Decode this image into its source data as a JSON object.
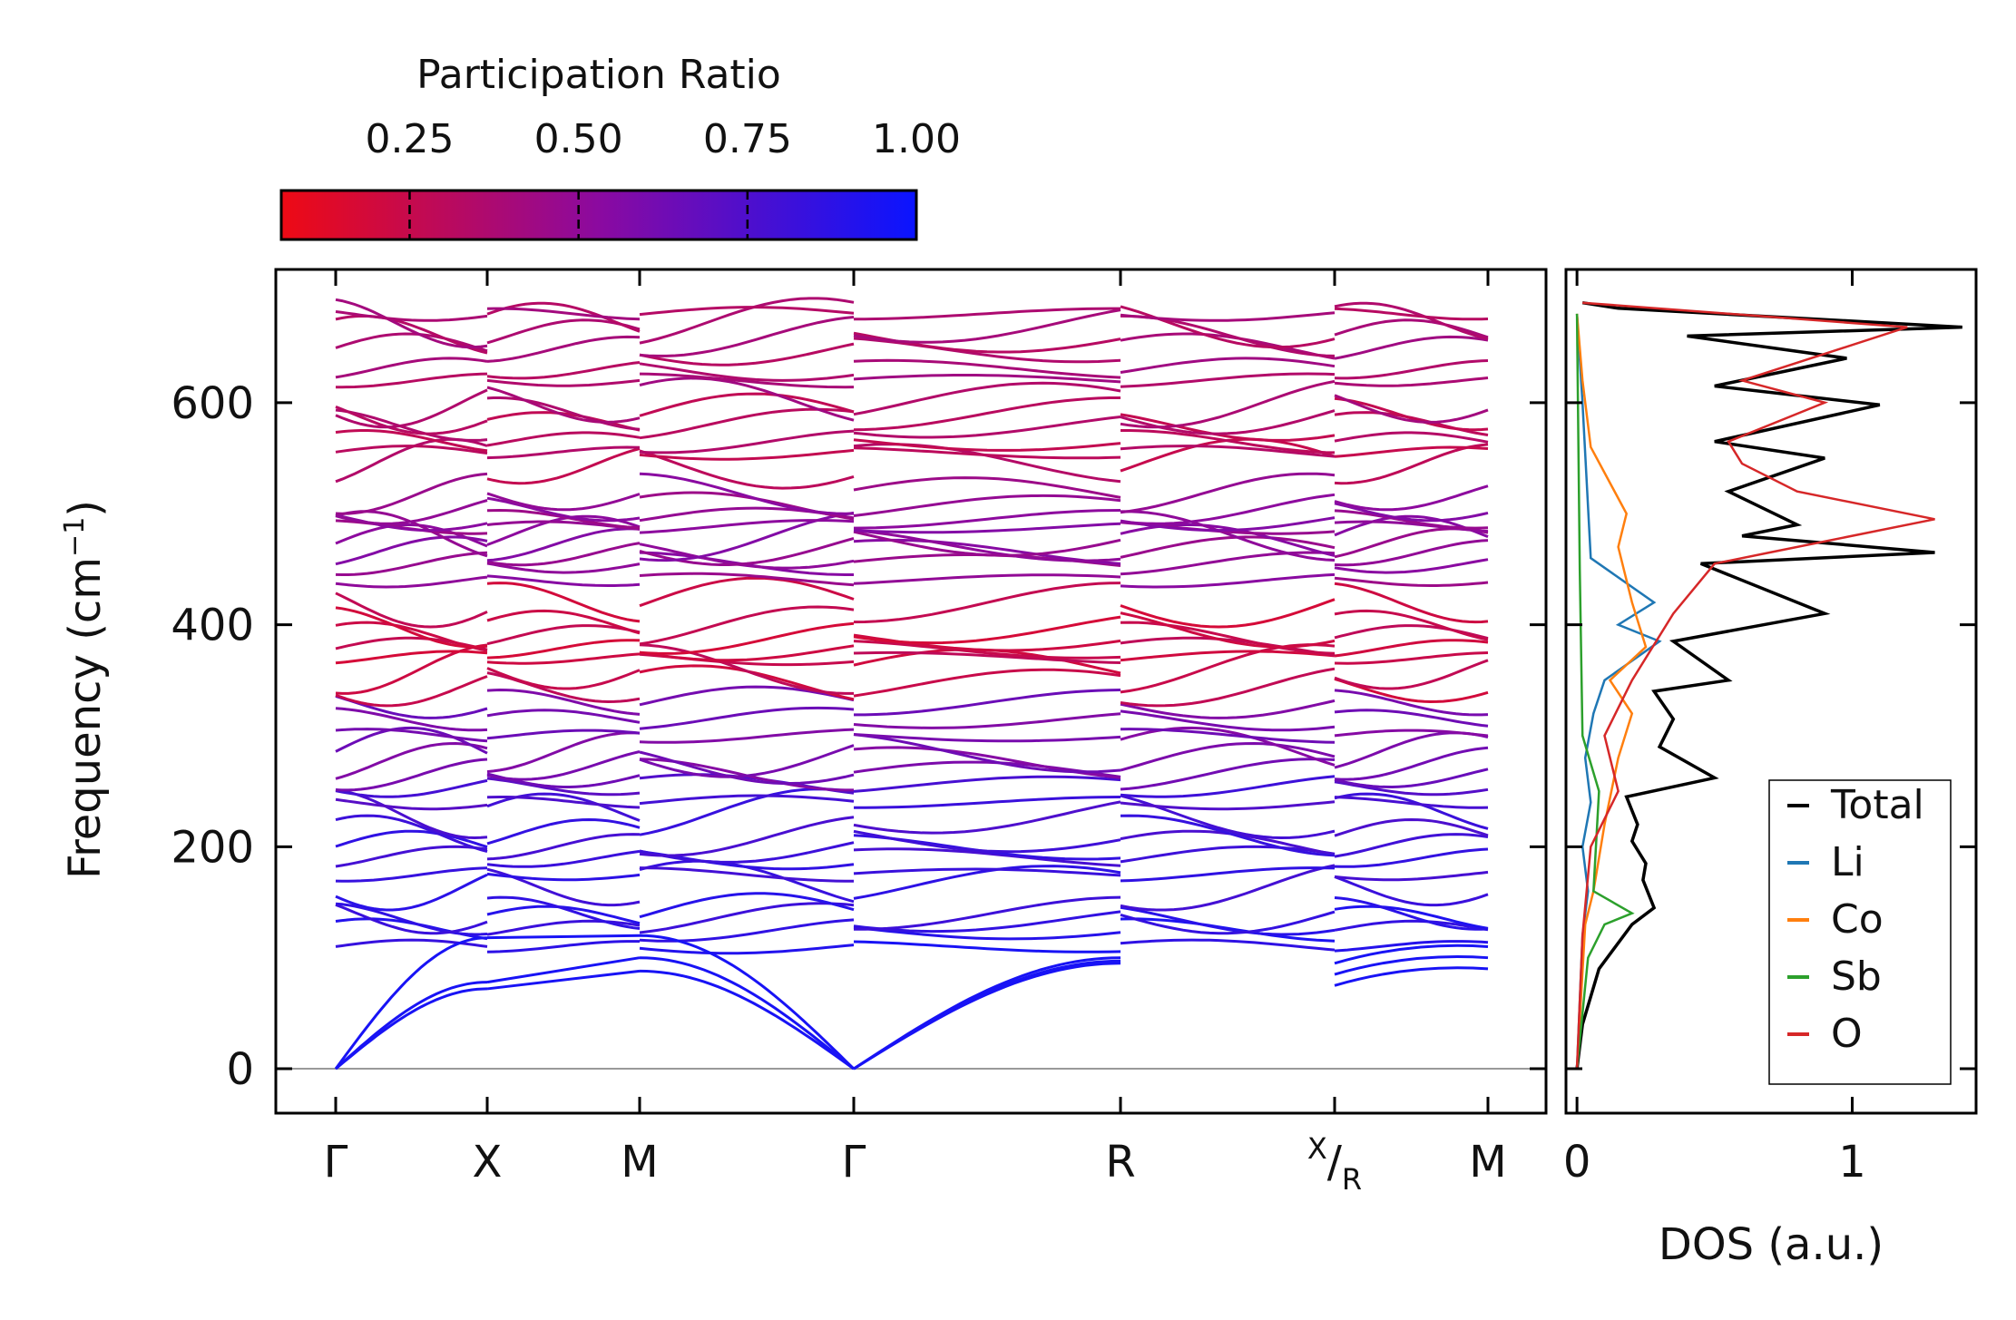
{
  "chart_data": [
    {
      "type": "line",
      "title": "",
      "xlabel": "",
      "ylabel": "Frequency (cm⁻¹)",
      "ylim": [
        -40,
        720
      ],
      "xticks": [
        "Γ",
        "X",
        "M",
        "Γ",
        "R",
        "X/R",
        "M"
      ],
      "xtick_positions": [
        0,
        1,
        2,
        3.41,
        5.18,
        6.6,
        7.6
      ],
      "yticks": [
        "0",
        "200",
        "400",
        "600"
      ],
      "ytick_values": [
        0,
        200,
        400,
        600
      ],
      "zero_line": 0,
      "colorbar": {
        "title": "Participation Ratio",
        "ticks": [
          "0.25",
          "0.50",
          "0.75",
          "1.00"
        ],
        "tick_values": [
          0.25,
          0.5,
          0.75,
          1.0
        ],
        "range": [
          0.06,
          1.0
        ],
        "low_color": "#ee0a14",
        "high_color": "#0a14ff"
      },
      "optical_band_frequencies": [
        110,
        125,
        135,
        140,
        165,
        175,
        190,
        200,
        210,
        230,
        240,
        255,
        265,
        275,
        285,
        300,
        315,
        330,
        345,
        360,
        370,
        378,
        388,
        398,
        420,
        440,
        455,
        465,
        472,
        480,
        488,
        495,
        505,
        518,
        545,
        555,
        565,
        580,
        590,
        600,
        620,
        630,
        648,
        660,
        672,
        680
      ],
      "acoustic_band_endpoints": {
        "X": [
          72,
          78,
          118
        ],
        "M": [
          88,
          100,
          120
        ],
        "R": [
          95,
          97,
          100
        ],
        "M_end": [
          90,
          100,
          110
        ]
      }
    },
    {
      "type": "line",
      "title": "",
      "xlabel": "DOS (a.u.)",
      "ylabel": "",
      "xlim": [
        -0.04,
        1.45
      ],
      "ylim": [
        -40,
        720
      ],
      "xticks": [
        "0",
        "1"
      ],
      "xtick_values": [
        0,
        1
      ],
      "legend": {
        "position": "bottom-right",
        "entries": [
          "Total",
          "Li",
          "Co",
          "Sb",
          "O"
        ]
      },
      "series": [
        {
          "name": "Total",
          "color": "#000000",
          "x": [
            0.0,
            0.02,
            0.08,
            0.2,
            0.28,
            0.24,
            0.25,
            0.2,
            0.22,
            0.18,
            0.5,
            0.3,
            0.35,
            0.28,
            0.55,
            0.35,
            0.9,
            0.45,
            1.3,
            0.6,
            0.8,
            0.55,
            0.9,
            0.5,
            1.1,
            0.5,
            0.98,
            0.4,
            1.4,
            0.15,
            0.02
          ],
          "y": [
            0,
            40,
            90,
            130,
            145,
            170,
            185,
            205,
            220,
            245,
            262,
            290,
            315,
            340,
            350,
            385,
            410,
            455,
            465,
            480,
            490,
            520,
            550,
            565,
            598,
            615,
            640,
            660,
            668,
            685,
            690
          ]
        },
        {
          "name": "Li",
          "color": "#1f77b4",
          "x": [
            0.0,
            0.02,
            0.04,
            0.02,
            0.05,
            0.03,
            0.06,
            0.1,
            0.3,
            0.15,
            0.28,
            0.05,
            0.02,
            0.0
          ],
          "y": [
            0,
            120,
            160,
            200,
            240,
            280,
            320,
            350,
            385,
            400,
            420,
            460,
            600,
            680
          ]
        },
        {
          "name": "Co",
          "color": "#ff7f0e",
          "x": [
            0.0,
            0.03,
            0.06,
            0.1,
            0.15,
            0.2,
            0.12,
            0.25,
            0.2,
            0.15,
            0.18,
            0.05,
            0.02,
            0.0
          ],
          "y": [
            0,
            130,
            160,
            220,
            280,
            320,
            350,
            380,
            420,
            470,
            500,
            560,
            620,
            680
          ]
        },
        {
          "name": "Sb",
          "color": "#2ca02c",
          "x": [
            0.0,
            0.04,
            0.1,
            0.2,
            0.06,
            0.08,
            0.02,
            0.01,
            0.0
          ],
          "y": [
            0,
            100,
            130,
            140,
            160,
            250,
            300,
            450,
            680
          ]
        },
        {
          "name": "O",
          "color": "#d62728",
          "x": [
            0.0,
            0.02,
            0.05,
            0.15,
            0.1,
            0.2,
            0.35,
            0.5,
            0.7,
            1.3,
            0.8,
            0.6,
            0.55,
            0.9,
            0.6,
            1.2,
            0.02
          ],
          "y": [
            0,
            120,
            200,
            250,
            300,
            350,
            410,
            455,
            465,
            495,
            520,
            545,
            565,
            600,
            620,
            668,
            690
          ]
        }
      ]
    }
  ]
}
